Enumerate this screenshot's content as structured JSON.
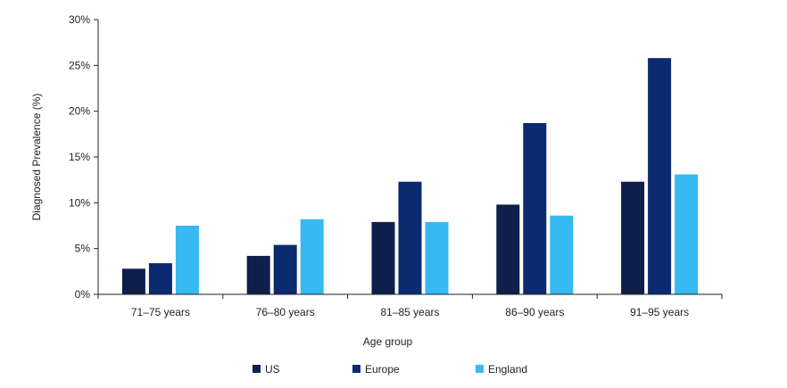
{
  "chart_data": {
    "type": "bar",
    "categories": [
      "71–75 years",
      "76–80 years",
      "81–85 years",
      "86–90 years",
      "91–95 years"
    ],
    "series": [
      {
        "name": "US",
        "color": "#0f1f4b",
        "values": [
          2.8,
          4.2,
          7.9,
          9.8,
          12.3
        ]
      },
      {
        "name": "Europe",
        "color": "#0c2a70",
        "values": [
          3.4,
          5.4,
          12.3,
          18.7,
          25.8
        ]
      },
      {
        "name": "England",
        "color": "#37b9f2",
        "values": [
          7.5,
          8.2,
          7.9,
          8.6,
          13.1
        ]
      }
    ],
    "xlabel": "Age group",
    "ylabel": "Diagnosed Prevalence (%)",
    "ylim": [
      0,
      30
    ],
    "yticks": [
      "0%",
      "5%",
      "10%",
      "15%",
      "20%",
      "25%",
      "30%"
    ],
    "grid": false,
    "legend": "bottom"
  }
}
